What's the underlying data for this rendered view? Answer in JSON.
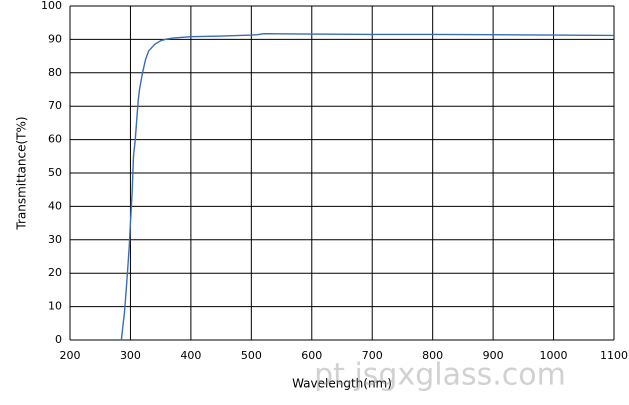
{
  "chart_data": {
    "type": "line",
    "x_label": "Wavelength(nm)",
    "y_label": "Transmittance(T%)",
    "watermark": "pt.jsgxglass.com",
    "x": [
      285,
      288,
      290,
      293,
      295,
      298,
      300,
      303,
      305,
      308,
      310,
      313,
      315,
      320,
      325,
      330,
      340,
      350,
      360,
      370,
      400,
      450,
      500,
      510,
      520,
      600,
      700,
      800,
      900,
      1000,
      1100
    ],
    "series": [
      {
        "name": "Transmittance",
        "color": "#3a6db5",
        "values": [
          0,
          5,
          8,
          15,
          20,
          28,
          35,
          45,
          55,
          60,
          65,
          72,
          75,
          80,
          84,
          86.5,
          88.5,
          89.6,
          90.1,
          90.4,
          90.8,
          91.0,
          91.3,
          91.4,
          91.7,
          91.6,
          91.5,
          91.5,
          91.4,
          91.3,
          91.2
        ]
      }
    ],
    "xlim": [
      200,
      1100
    ],
    "xticks": [
      200,
      300,
      400,
      500,
      600,
      700,
      800,
      900,
      1000,
      1100
    ],
    "ylim": [
      0,
      100
    ],
    "yticks": [
      0,
      10,
      20,
      30,
      40,
      50,
      60,
      70,
      80,
      90,
      100
    ],
    "grid": true
  }
}
